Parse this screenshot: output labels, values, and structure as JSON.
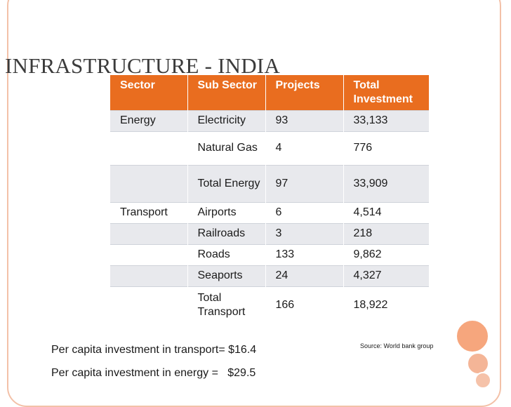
{
  "slide": {
    "title": "INFRASTRUCTURE - INDIA"
  },
  "table": {
    "headers": [
      "Sector",
      "Sub Sector",
      "Projects",
      "Total Investment"
    ],
    "rows": [
      [
        "Energy",
        "Electricity",
        "93",
        "33,133"
      ],
      [
        "",
        "Natural Gas",
        "4",
        "776"
      ],
      [
        "",
        "Total Energy",
        "97",
        "33,909"
      ],
      [
        "Transport",
        "Airports",
        "6",
        "4,514"
      ],
      [
        "",
        "Railroads",
        "3",
        "218"
      ],
      [
        "",
        "Roads",
        "133",
        "9,862"
      ],
      [
        "",
        "Seaports",
        "24",
        "4,327"
      ],
      [
        "",
        "Total Transport",
        "166",
        "18,922"
      ]
    ]
  },
  "notes": {
    "source": "Source: World bank group",
    "per_capita_transport": "Per capita investment in transport= $16.4",
    "per_capita_energy": "Per capita investment in energy =   $29.5"
  },
  "colors": {
    "accent": "#e96d1f",
    "frame": "#f3c1a8",
    "row_alt": "#e8e9ed"
  }
}
